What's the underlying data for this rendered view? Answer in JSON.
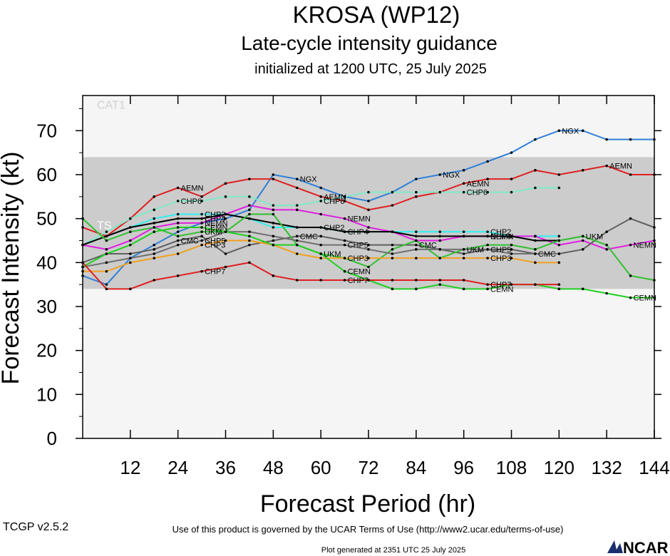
{
  "chart_data": {
    "type": "line",
    "title": "KROSA (WP12)",
    "subtitle": "Late-cycle intensity guidance",
    "init_text": "initialized at 1200 UTC, 25 July 2025",
    "xlabel": "Forecast Period (hr)",
    "ylabel": "Forecast Intensity (kt)",
    "xlim": [
      0,
      144
    ],
    "ylim": [
      0,
      78
    ],
    "x_ticks": [
      12,
      24,
      36,
      48,
      60,
      72,
      84,
      96,
      108,
      120,
      132,
      144
    ],
    "y_ticks": [
      0,
      10,
      20,
      30,
      40,
      50,
      60,
      70
    ],
    "bands": [
      {
        "label": "TS",
        "from": 34,
        "to": 64,
        "color": "#cccccc"
      },
      {
        "label": "CAT1",
        "from": 64,
        "to": 83,
        "color": "#f5f5f5"
      }
    ],
    "series": [
      {
        "name": "NGX",
        "color": "#2f80d8",
        "x": [
          0,
          6,
          12,
          18,
          24,
          30,
          36,
          42,
          48,
          54,
          60,
          66,
          72,
          78,
          84,
          90,
          96,
          102,
          108,
          114,
          120,
          126,
          132,
          138,
          144
        ],
        "y": [
          37,
          35,
          41,
          44,
          47,
          49,
          50,
          52,
          60,
          59,
          57,
          55,
          54,
          56,
          59,
          60,
          61,
          63,
          65,
          68,
          70,
          70,
          68,
          68,
          68
        ],
        "labels": [
          {
            "x": 54,
            "text": "NGX"
          },
          {
            "x": 90,
            "text": "NGX"
          },
          {
            "x": 120,
            "text": "NGX"
          }
        ]
      },
      {
        "name": "AEMN",
        "color": "#e02020",
        "x": [
          0,
          6,
          12,
          18,
          24,
          30,
          36,
          42,
          48,
          54,
          60,
          66,
          72,
          78,
          84,
          90,
          96,
          102,
          108,
          114,
          120,
          126,
          132,
          138,
          144
        ],
        "y": [
          48,
          46,
          50,
          55,
          57,
          55,
          58,
          59,
          59,
          57,
          55,
          54,
          52,
          53,
          55,
          56,
          58,
          59,
          59,
          61,
          60,
          61,
          62,
          60,
          60
        ],
        "labels": [
          {
            "x": 24,
            "text": "AEMN"
          },
          {
            "x": 60,
            "text": "AEMN"
          },
          {
            "x": 96,
            "text": "AEMN"
          },
          {
            "x": 132,
            "text": "AEMN"
          }
        ]
      },
      {
        "name": "CHP6",
        "color": "#80e8c8",
        "x": [
          0,
          6,
          12,
          18,
          24,
          30,
          36,
          42,
          48,
          54,
          60,
          66,
          72,
          78,
          84,
          90,
          96,
          102,
          108,
          114,
          120
        ],
        "y": [
          44,
          47,
          50,
          52,
          54,
          54,
          55,
          55,
          53,
          53,
          54,
          55,
          56,
          56,
          56,
          56,
          56,
          56,
          56,
          57,
          57
        ],
        "labels": [
          {
            "x": 24,
            "text": "CHP6"
          },
          {
            "x": 60,
            "text": "CHP6"
          },
          {
            "x": 96,
            "text": "CHP6"
          }
        ]
      },
      {
        "name": "CHP2",
        "color": "#30f0f0",
        "x": [
          0,
          6,
          12,
          18,
          24,
          30,
          36,
          42,
          48,
          54,
          60,
          66,
          72,
          78,
          84,
          90,
          96,
          102,
          108,
          114,
          120
        ],
        "y": [
          44,
          46,
          48,
          50,
          51,
          51,
          51,
          50,
          48,
          48,
          48,
          47,
          47,
          47,
          47,
          47,
          47,
          47,
          46,
          46,
          46
        ],
        "labels": [
          {
            "x": 30,
            "text": "CHP2"
          },
          {
            "x": 60,
            "text": "CHP2"
          },
          {
            "x": 102,
            "text": "CHP2"
          }
        ]
      },
      {
        "name": "NEMN",
        "color": "#e020e0",
        "x": [
          0,
          6,
          12,
          18,
          24,
          30,
          36,
          42,
          48,
          54,
          60,
          66,
          72,
          78,
          84,
          90,
          96,
          102,
          108,
          114,
          120,
          126,
          132,
          138,
          144
        ],
        "y": [
          44,
          43,
          45,
          48,
          49,
          49,
          51,
          53,
          52,
          52,
          51,
          50,
          48,
          47,
          45,
          45,
          46,
          46,
          46,
          46,
          44,
          45,
          43,
          44,
          45
        ],
        "labels": [
          {
            "x": 30,
            "text": "NEMN"
          },
          {
            "x": 66,
            "text": "NEMN"
          },
          {
            "x": 102,
            "text": "NEMN"
          },
          {
            "x": 138,
            "text": "NEMN"
          }
        ]
      },
      {
        "name": "CHP4",
        "color": "#000000",
        "x": [
          0,
          6,
          12,
          18,
          24,
          30,
          36,
          42,
          48,
          54,
          60,
          66,
          72,
          78,
          84,
          90,
          96,
          102,
          108,
          114,
          120
        ],
        "y": [
          44,
          46,
          48,
          49,
          50,
          50,
          51,
          50,
          49,
          48,
          48,
          47,
          47,
          47,
          46,
          46,
          46,
          46,
          46,
          45,
          45
        ],
        "labels": [
          {
            "x": 30,
            "text": "CHP4"
          },
          {
            "x": 66,
            "text": "CHP4"
          },
          {
            "x": 102,
            "text": "CHP4"
          }
        ]
      },
      {
        "name": "CMC",
        "color": "#606060",
        "x": [
          0,
          6,
          12,
          18,
          24,
          30,
          36,
          42,
          48,
          54,
          60,
          66,
          72,
          78,
          84,
          90,
          96,
          102,
          108,
          114,
          120,
          126,
          132,
          138,
          144
        ],
        "y": [
          40,
          42,
          42,
          43,
          45,
          46,
          42,
          44,
          45,
          46,
          46,
          45,
          44,
          44,
          44,
          43,
          42,
          43,
          43,
          42,
          42,
          43,
          47,
          50,
          48
        ],
        "labels": [
          {
            "x": 24,
            "text": "CMC"
          },
          {
            "x": 54,
            "text": "CMC"
          },
          {
            "x": 84,
            "text": "CMC"
          },
          {
            "x": 114,
            "text": "CMC"
          }
        ]
      },
      {
        "name": "UKM",
        "color": "#30c030",
        "x": [
          0,
          6,
          12,
          18,
          24,
          30,
          36,
          42,
          48,
          54,
          60,
          66,
          72,
          78,
          84,
          90,
          96,
          102,
          108,
          114,
          120,
          126,
          132,
          138,
          144
        ],
        "y": [
          50,
          45,
          47,
          48,
          46,
          47,
          47,
          51,
          51,
          44,
          42,
          41,
          39,
          43,
          45,
          41,
          43,
          44,
          44,
          43,
          45,
          46,
          44,
          37,
          36
        ],
        "labels": [
          {
            "x": 30,
            "text": "UKM"
          },
          {
            "x": 60,
            "text": "UKM"
          },
          {
            "x": 96,
            "text": "UKM"
          },
          {
            "x": 126,
            "text": "UKM"
          }
        ]
      },
      {
        "name": "CHP5",
        "color": "#707070",
        "x": [
          0,
          6,
          12,
          18,
          24,
          30,
          36,
          42,
          48,
          54,
          60,
          66,
          72,
          78,
          84,
          90,
          96,
          102,
          108,
          114,
          120
        ],
        "y": [
          39,
          40,
          41,
          42,
          44,
          45,
          47,
          47,
          46,
          45,
          44,
          44,
          43,
          42,
          43,
          43,
          43,
          43,
          42,
          42,
          42
        ],
        "labels": [
          {
            "x": 30,
            "text": "CHP5"
          },
          {
            "x": 66,
            "text": "CHP5"
          },
          {
            "x": 102,
            "text": "CHP5"
          }
        ]
      },
      {
        "name": "CHP3",
        "color": "#f0a020",
        "x": [
          0,
          6,
          12,
          18,
          24,
          30,
          36,
          42,
          48,
          54,
          60,
          66,
          72,
          78,
          84,
          90,
          96,
          102,
          108,
          114,
          120
        ],
        "y": [
          38,
          38,
          40,
          41,
          42,
          44,
          45,
          45,
          44,
          42,
          41,
          41,
          41,
          41,
          41,
          41,
          41,
          41,
          41,
          40,
          40
        ],
        "labels": [
          {
            "x": 30,
            "text": "CHP3"
          },
          {
            "x": 66,
            "text": "CHP3"
          },
          {
            "x": 102,
            "text": "CHP3"
          }
        ]
      },
      {
        "name": "CEMN",
        "color": "#20d020",
        "x": [
          0,
          6,
          12,
          18,
          24,
          30,
          36,
          42,
          48,
          54,
          60,
          66,
          72,
          78,
          84,
          90,
          96,
          102,
          108,
          114,
          120,
          126,
          132,
          138,
          144
        ],
        "y": [
          39,
          42,
          44,
          47,
          48,
          48,
          47,
          46,
          44,
          44,
          42,
          38,
          36,
          34,
          34,
          35,
          34,
          34,
          35,
          35,
          34,
          34,
          33,
          32,
          32
        ],
        "labels": [
          {
            "x": 30,
            "text": "CEMN"
          },
          {
            "x": 66,
            "text": "CEMN"
          },
          {
            "x": 102,
            "text": "CEMN"
          },
          {
            "x": 138,
            "text": "CEMN"
          }
        ]
      },
      {
        "name": "CHP7",
        "color": "#e02020",
        "x": [
          0,
          6,
          12,
          18,
          24,
          30,
          36,
          42,
          48,
          54,
          60,
          66,
          72,
          78,
          84,
          90,
          96,
          102,
          108,
          114,
          120
        ],
        "y": [
          40,
          34,
          34,
          36,
          37,
          38,
          39,
          40,
          37,
          36,
          36,
          36,
          36,
          36,
          36,
          36,
          36,
          35,
          35,
          35,
          35
        ],
        "labels": [
          {
            "x": 30,
            "text": "CHP7"
          },
          {
            "x": 66,
            "text": "CHP7"
          },
          {
            "x": 102,
            "text": "CHP7"
          }
        ]
      }
    ]
  },
  "footer": {
    "version": "TCGP v2.5.2",
    "terms": "Use of this product is governed by the UCAR Terms of Use (http://www2.ucar.edu/terms-of-use)",
    "generated": "Plot generated at 2351 UTC   25 July 2025",
    "logo": "NCAR"
  }
}
